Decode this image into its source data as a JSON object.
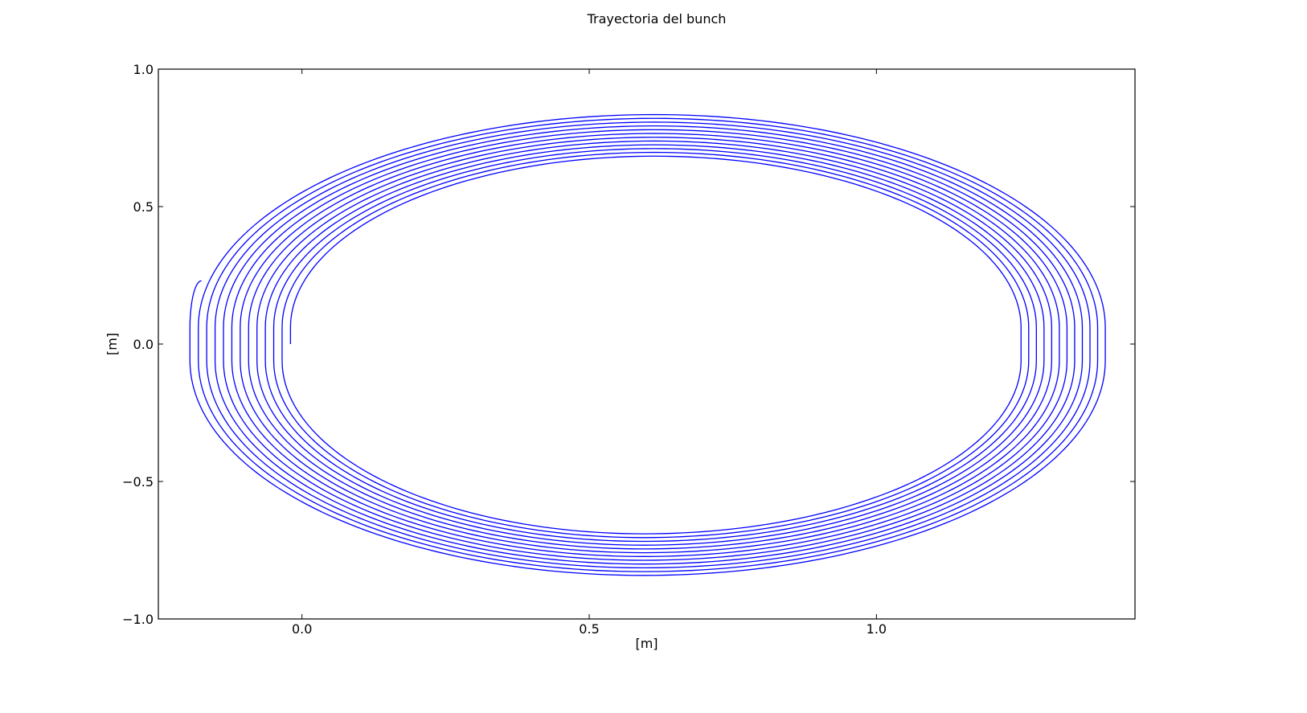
{
  "chart_data": {
    "type": "line",
    "title": "Trayectoria del bunch",
    "xlabel": "[m]",
    "ylabel": "[m]",
    "xlim": [
      -0.25,
      1.45
    ],
    "ylim": [
      -1.0,
      1.0
    ],
    "x_ticks": [
      0.0,
      0.5,
      1.0
    ],
    "y_ticks": [
      -1.0,
      -0.5,
      0.0,
      0.5,
      1.0
    ],
    "x_tick_labels": [
      "0.0",
      "0.5",
      "1.0"
    ],
    "y_tick_labels": [
      "−1.0",
      "−0.5",
      "0.0",
      "0.5",
      "1.0"
    ],
    "grid": false,
    "legend": "none",
    "series_color": "#0000ff",
    "series": [
      {
        "description_values": "spiral trajectory: 12 nested stadium-shaped loops, starting at (-0.02, 0.0) and ending at (-0.175, 0.23)",
        "start": [
          -0.02,
          0.0
        ],
        "end": [
          -0.175,
          0.23
        ],
        "turns": 12,
        "inner_loop": {
          "x_left": -0.02,
          "x_right": 1.245,
          "y_top": 0.68,
          "y_bottom": -0.68
        },
        "outer_loop": {
          "x_left": -0.195,
          "x_right": 1.405,
          "y_top": 0.845,
          "y_bottom": -0.845
        },
        "straight_half_length": 0.06,
        "top_center_x": 0.613,
        "bottom_center_x": 0.595
      }
    ]
  }
}
